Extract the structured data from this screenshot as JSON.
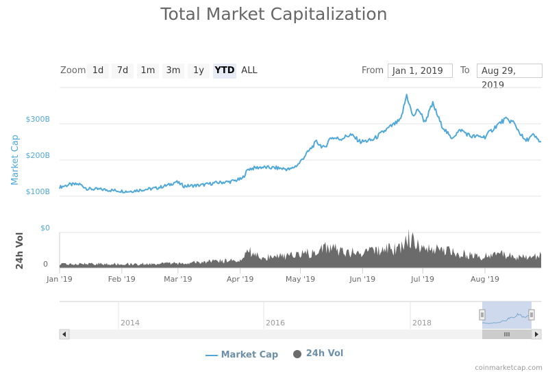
{
  "title": "Total Market Capitalization",
  "toolbar": {
    "zoom_label": "Zoom",
    "buttons": [
      "1d",
      "7d",
      "1m",
      "3m",
      "1y",
      "YTD",
      "ALL"
    ],
    "active": "YTD",
    "from_label": "From",
    "from_value": "Jan 1, 2019",
    "to_label": "To",
    "to_value": "Aug 29, 2019"
  },
  "colors": {
    "market_cap": "#4fa8d8",
    "volume": "#6b6b6b",
    "navigator_mask": "#c9d5ec",
    "axis_label": "#4fa8d8"
  },
  "legend": {
    "market_cap": "Market Cap",
    "volume": "24h Vol"
  },
  "credit": "coinmarketcap.com",
  "navigator": {
    "years": [
      "2014",
      "2016",
      "2018"
    ]
  },
  "chart_data": {
    "type": "line",
    "title": "Total Market Capitalization",
    "xlabel": "",
    "ylabel": "Market Cap",
    "y2label": "24h Vol",
    "x_range": [
      "2019-01-01",
      "2019-08-29"
    ],
    "x_tick_labels": [
      "Jan '19",
      "Feb '19",
      "Mar '19",
      "Apr '19",
      "May '19",
      "Jun '19",
      "Jul '19",
      "Aug '19"
    ],
    "y_tick_labels": [
      "$0",
      "$100B",
      "$200B",
      "$300B"
    ],
    "y_ticks": [
      0,
      100,
      200,
      300
    ],
    "ylim": [
      0,
      400
    ],
    "vol_tick_label": "0",
    "grid": true,
    "legend_position": "bottom-center",
    "series": [
      {
        "name": "Market Cap",
        "unit": "USD billions",
        "x_day": [
          0,
          5,
          10,
          14,
          20,
          27,
          34,
          40,
          48,
          55,
          58,
          62,
          70,
          78,
          85,
          91,
          94,
          100,
          108,
          115,
          119,
          122,
          128,
          132,
          135,
          140,
          145,
          150,
          156,
          160,
          165,
          170,
          173,
          176,
          179,
          182,
          186,
          190,
          195,
          200,
          205,
          212,
          218,
          222,
          226,
          232,
          236,
          240
        ],
        "values": [
          125,
          132,
          133,
          120,
          119,
          116,
          113,
          117,
          122,
          132,
          140,
          128,
          130,
          137,
          140,
          148,
          175,
          180,
          178,
          174,
          188,
          210,
          250,
          232,
          262,
          258,
          270,
          250,
          255,
          272,
          292,
          310,
          380,
          320,
          340,
          305,
          355,
          300,
          260,
          283,
          265,
          264,
          296,
          312,
          305,
          252,
          268,
          248
        ]
      },
      {
        "name": "24h Vol",
        "unit": "relative",
        "x_day": [
          0,
          20,
          40,
          60,
          80,
          90,
          94,
          100,
          110,
          120,
          128,
          132,
          140,
          150,
          160,
          170,
          174,
          180,
          190,
          200,
          210,
          220,
          230,
          240
        ],
        "values": [
          10,
          12,
          11,
          13,
          20,
          20,
          50,
          30,
          32,
          38,
          45,
          62,
          48,
          40,
          50,
          55,
          85,
          55,
          50,
          40,
          32,
          38,
          30,
          35
        ]
      }
    ]
  }
}
